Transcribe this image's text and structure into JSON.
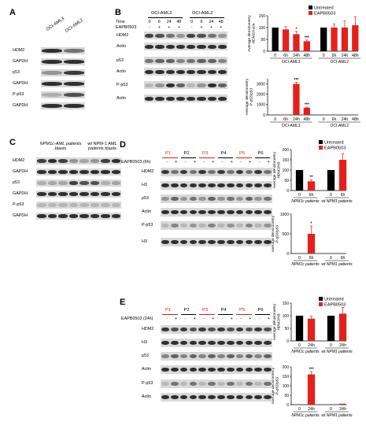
{
  "panels": {
    "A": {
      "label": "A",
      "cols": [
        "OCI-AML3",
        "OCI-AML2"
      ],
      "rows": [
        "HDM2",
        "GAPDH",
        "p53",
        "GAPDH",
        "P-p53",
        "GAPDH"
      ]
    },
    "B": {
      "label": "B",
      "groups": [
        "OCI-AML3",
        "OCI-AML2"
      ],
      "time_label": "Time",
      "times": [
        "0",
        "6",
        "24",
        "48",
        "0",
        "6",
        "24",
        "48"
      ],
      "treat_label": "EAPB0503",
      "treat": [
        "-",
        "+",
        "+",
        "+",
        "-",
        "+",
        "+",
        "+"
      ],
      "rows": [
        "HDM2",
        "Actin",
        "p53",
        "Actin",
        "P-p53",
        "Actin"
      ]
    },
    "C": {
      "label": "C",
      "group1": "NPM1c-AML patients blasts",
      "group2": "wt NPM-1 AML patients blasts",
      "rows": [
        "HDM2",
        "GAPDH",
        "p53",
        "GAPDH",
        "P-p53",
        "GAPDH"
      ]
    },
    "D": {
      "label": "D",
      "patients": [
        "P1",
        "P2",
        "P3",
        "P4",
        "P5",
        "P6"
      ],
      "treat_label": "EAPB0503 (6h)",
      "treat": [
        "-",
        "+",
        "-",
        "+",
        "-",
        "+",
        "-",
        "+",
        "-",
        "+",
        "-",
        "+"
      ],
      "rows": [
        "HDM2",
        "H3",
        "p53",
        "Actin",
        "P-p53",
        "H3"
      ]
    },
    "E": {
      "label": "E",
      "patients": [
        "P1",
        "P2",
        "P3",
        "P4",
        "P5",
        "P6"
      ],
      "treat_label": "EAPB0503 (24h)",
      "treat": [
        "-",
        "+",
        "-",
        "+",
        "-",
        "+",
        "-",
        "+",
        "-",
        "+",
        "-",
        "+"
      ],
      "rows": [
        "HDM2",
        "H3",
        "p53",
        "Actin",
        "P-p53",
        "Actin"
      ]
    }
  },
  "legend": {
    "untreated": "Untreated",
    "treated": "EAPB0503"
  },
  "colors": {
    "untreated": "#000000",
    "treated": "#e3211c",
    "red_text": "#d2201a"
  },
  "chart_data": [
    {
      "id": "B-top",
      "type": "bar",
      "ylabel": "Average densitometry HDM2/Actin",
      "categories": [
        "0",
        "6h",
        "24h",
        "48h",
        "0",
        "6h",
        "24h",
        "48h"
      ],
      "groups": [
        "OCI-AML3",
        "OCI-AML2"
      ],
      "values": [
        100,
        92,
        72,
        42,
        100,
        100,
        100,
        110
      ],
      "errors": [
        0,
        12,
        12,
        5,
        0,
        15,
        28,
        35
      ],
      "colors": [
        "untreated",
        "treated",
        "treated",
        "treated",
        "untreated",
        "treated",
        "treated",
        "treated"
      ],
      "significance": [
        "",
        "",
        "*",
        "***",
        "",
        "",
        "",
        ""
      ],
      "yticks": [
        0,
        50,
        100,
        150
      ],
      "ylim": [
        0,
        150
      ],
      "legend": [
        "Untreated",
        "EAPB0503"
      ]
    },
    {
      "id": "B-bottom",
      "type": "bar",
      "ylabel": "Average densitometry P-p53/p53",
      "categories": [
        "0",
        "6h",
        "24h",
        "48h",
        "0",
        "6h",
        "24h",
        "48h"
      ],
      "groups": [
        "OCI-AML3",
        "OCI-AML2"
      ],
      "values": [
        0,
        30,
        3000,
        700,
        0,
        0,
        0,
        0
      ],
      "errors": [
        0,
        0,
        150,
        60,
        0,
        0,
        0,
        0
      ],
      "colors": [
        "untreated",
        "treated",
        "treated",
        "treated",
        "untreated",
        "treated",
        "treated",
        "treated"
      ],
      "significance": [
        "",
        "",
        "***",
        "***",
        "",
        "",
        "",
        ""
      ],
      "yticks": [
        0,
        1000,
        2000,
        3000
      ],
      "ylim": [
        0,
        3500
      ]
    },
    {
      "id": "D-top",
      "type": "bar",
      "ylabel": "Average densitometry HDM2/H3",
      "categories": [
        "0",
        "6h",
        "0",
        "6h"
      ],
      "groups": [
        "NPM1c patients",
        "wt NPM1 patients"
      ],
      "values": [
        100,
        45,
        100,
        150
      ],
      "errors": [
        0,
        8,
        0,
        30
      ],
      "colors": [
        "untreated",
        "treated",
        "untreated",
        "treated"
      ],
      "significance": [
        "",
        "**",
        "",
        ""
      ],
      "yticks": [
        0,
        50,
        100,
        150,
        200
      ],
      "ylim": [
        0,
        200
      ],
      "legend": [
        "Untreated",
        "EAPB0503"
      ]
    },
    {
      "id": "D-bottom",
      "type": "bar",
      "ylabel": "Average densitometry P-p53/p53",
      "categories": [
        "0",
        "6h",
        "0",
        "6h"
      ],
      "groups": [
        "NPM1c patients",
        "wt NPM1 patients"
      ],
      "values": [
        0,
        500,
        0,
        0
      ],
      "errors": [
        0,
        200,
        0,
        0
      ],
      "colors": [
        "untreated",
        "treated",
        "untreated",
        "treated"
      ],
      "significance": [
        "",
        "*",
        "",
        ""
      ],
      "yticks": [
        0,
        500,
        1000
      ],
      "ylim": [
        0,
        1000
      ]
    },
    {
      "id": "E-top",
      "type": "bar",
      "ylabel": "Average densitometry HDM2/H3",
      "categories": [
        "0",
        "24h",
        "0",
        "24h"
      ],
      "groups": [
        "NPM1c patients",
        "wt NPM1 patients"
      ],
      "values": [
        100,
        88,
        100,
        108
      ],
      "errors": [
        0,
        10,
        0,
        25
      ],
      "colors": [
        "untreated",
        "treated",
        "untreated",
        "treated"
      ],
      "significance": [
        "",
        "",
        "",
        ""
      ],
      "yticks": [
        0,
        50,
        100,
        150
      ],
      "ylim": [
        0,
        150
      ],
      "legend": [
        "Untreated",
        "EAPB0503"
      ]
    },
    {
      "id": "E-bottom",
      "type": "bar",
      "ylabel": "Average densitometry P-p53/p53",
      "categories": [
        "0",
        "24h",
        "0",
        "24h"
      ],
      "groups": [
        "NPM1c patients",
        "wt NPM1 patients"
      ],
      "values": [
        0,
        160,
        0,
        5
      ],
      "errors": [
        0,
        15,
        0,
        0
      ],
      "colors": [
        "untreated",
        "treated",
        "untreated",
        "treated"
      ],
      "significance": [
        "",
        "***",
        "",
        ""
      ],
      "yticks": [
        0,
        50,
        100,
        150,
        200
      ],
      "ylim": [
        0,
        200
      ]
    }
  ]
}
